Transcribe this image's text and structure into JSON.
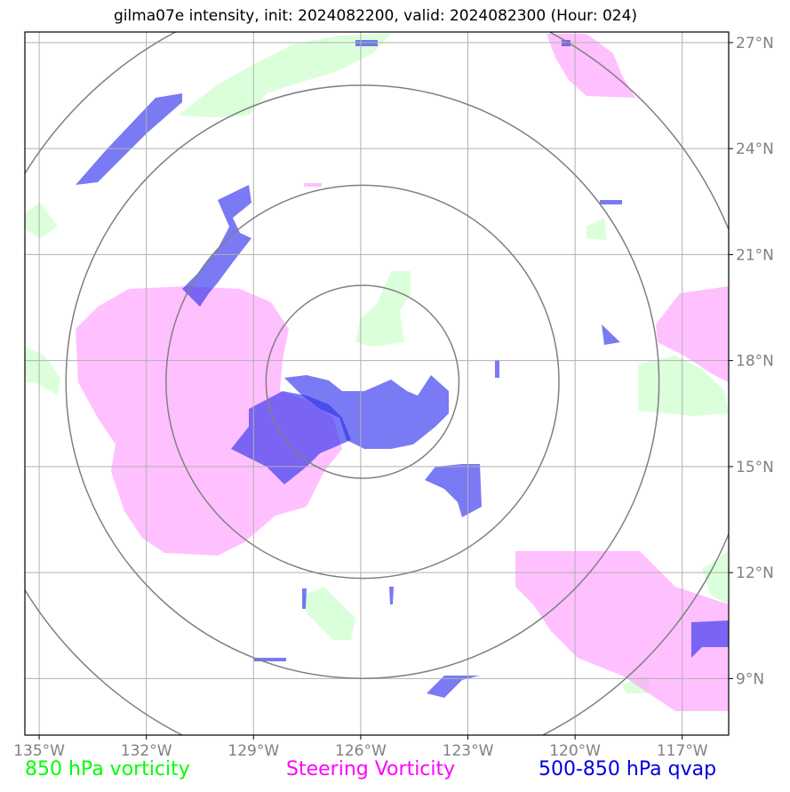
{
  "title": "gilma07e intensity, init: 2024082200, valid: 2024082300 (Hour: 024)",
  "map": {
    "lon_range": [
      -135.4,
      -115.7
    ],
    "lat_range": [
      7.4,
      27.3
    ],
    "lon_ticks": [
      {
        "value": -135,
        "label": "135°W"
      },
      {
        "value": -132,
        "label": "132°W"
      },
      {
        "value": -129,
        "label": "129°W"
      },
      {
        "value": -126,
        "label": "126°W"
      },
      {
        "value": -123,
        "label": "123°W"
      },
      {
        "value": -120,
        "label": "120°W"
      },
      {
        "value": -117,
        "label": "117°W"
      }
    ],
    "lat_ticks": [
      {
        "value": 27,
        "label": "27°N"
      },
      {
        "value": 24,
        "label": "24°N"
      },
      {
        "value": 21,
        "label": "21°N"
      },
      {
        "value": 18,
        "label": "18°N"
      },
      {
        "value": 15,
        "label": "15°N"
      },
      {
        "value": 12,
        "label": "12°N"
      },
      {
        "value": 9,
        "label": "9°N"
      }
    ],
    "storm_center": {
      "lon": -125.95,
      "lat": 17.4
    },
    "range_rings_deg": [
      2.7,
      5.5,
      8.3,
      11.1
    ],
    "grid": true,
    "colors": {
      "grid": "#b0b0b0",
      "rings": "#808080",
      "vort850": "#ccffcc",
      "steering": "#ff99ff",
      "qvap": "#3333ee",
      "axis": "#000000"
    }
  },
  "legend": {
    "green": {
      "label": "850 hPa vorticity",
      "color": "#00ff00"
    },
    "magenta": {
      "label": "Steering Vorticity",
      "color": "#ff00ff"
    },
    "blue": {
      "label": "500-850 hPa qvap",
      "color": "#0000dd"
    }
  }
}
